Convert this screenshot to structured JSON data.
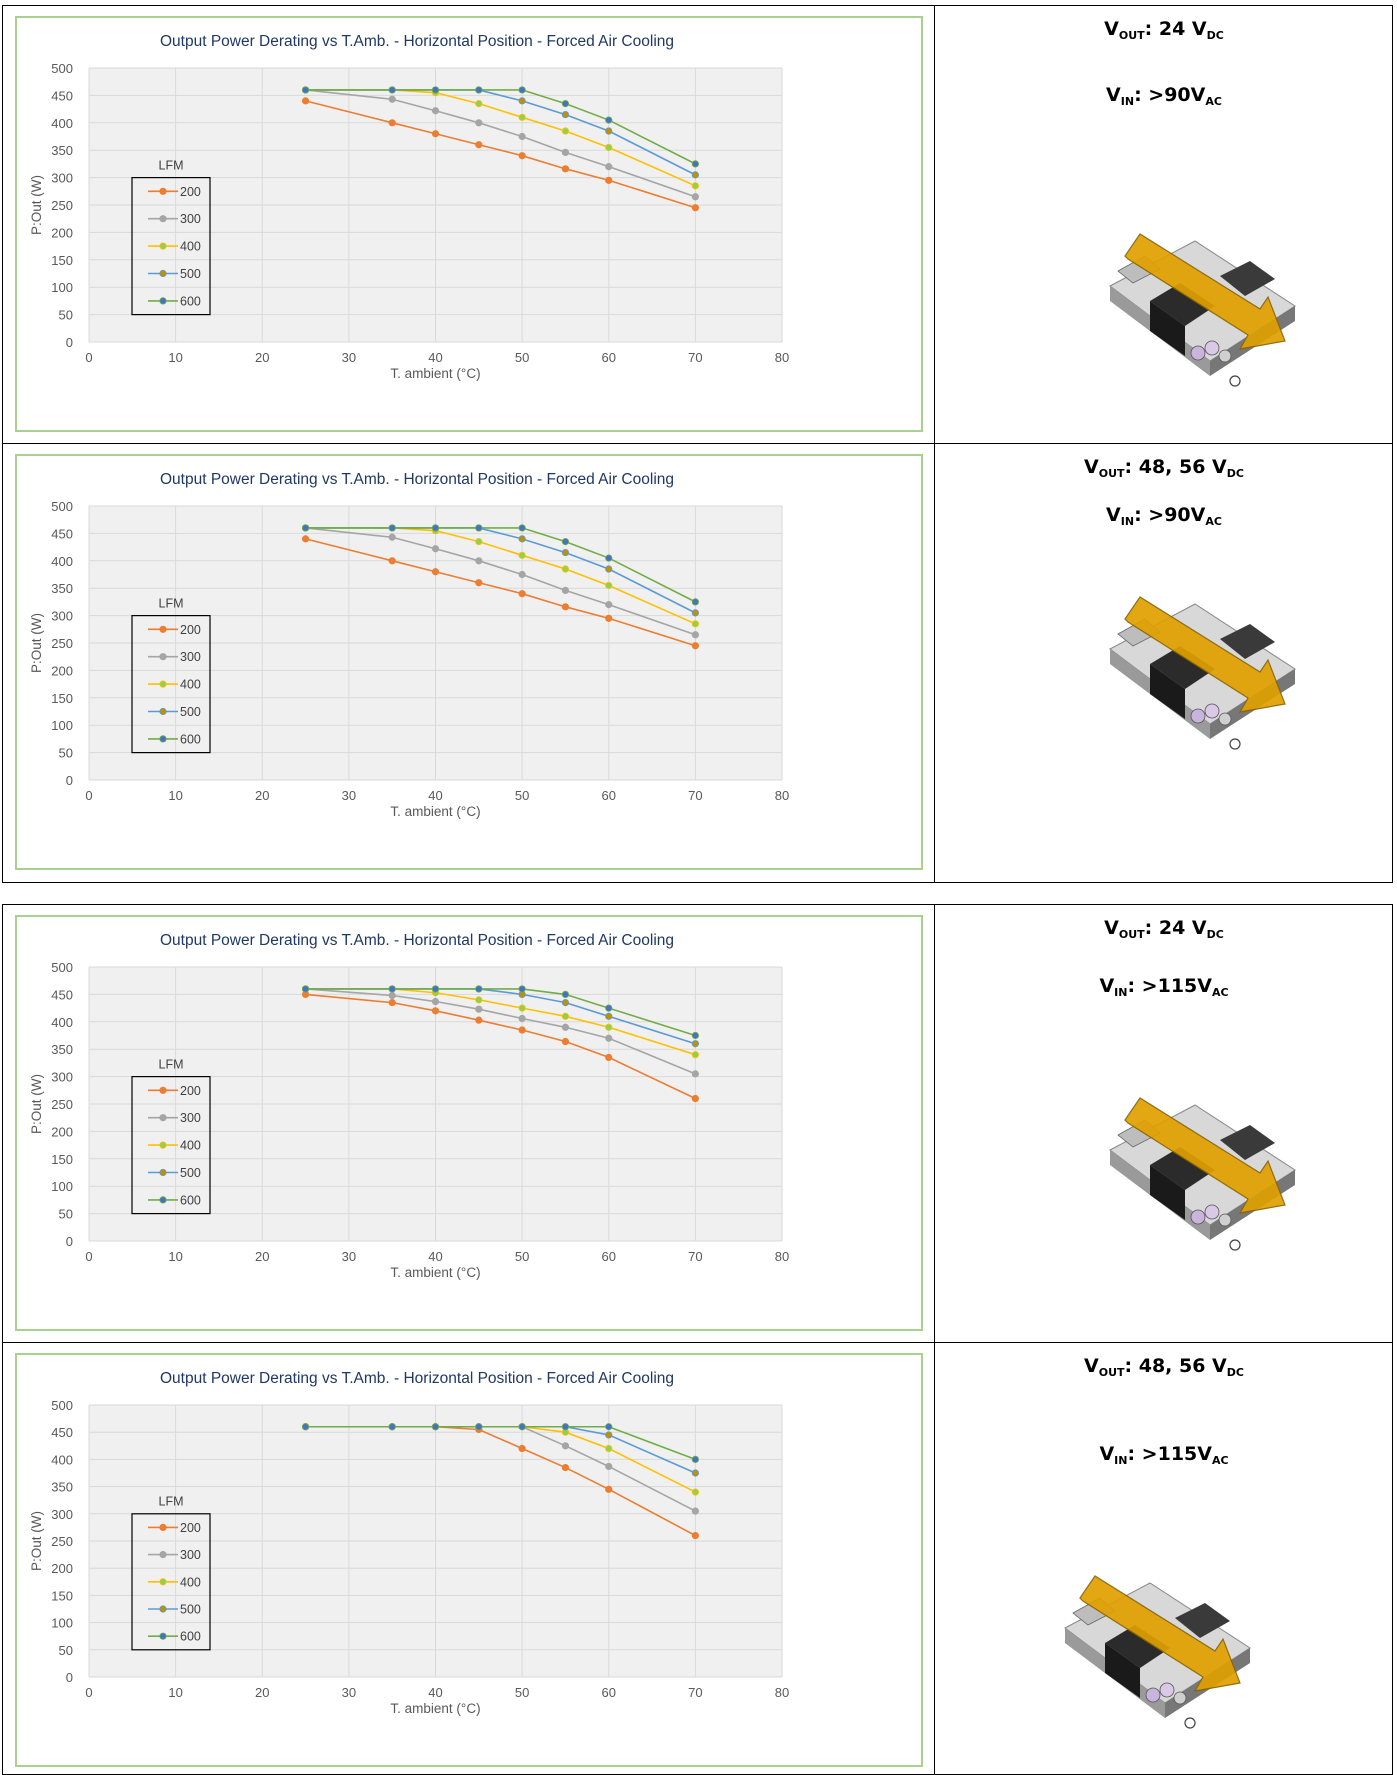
{
  "colors": {
    "frame": "#a9d08e",
    "title": "#1f3864",
    "plot_bg": "#f0f0f0",
    "grid": "#d9d9d9",
    "axis_text": "#595959",
    "s200": "#ed7d31",
    "s300": "#a5a5a5",
    "s400": "#ffc000",
    "s400_marker": "#92d050",
    "s500": "#5b9bd5",
    "s500_marker": "#bf9000",
    "s600": "#70ad47",
    "s600_marker": "#4472c4",
    "arrow": "#e0a000"
  },
  "panels": [
    {
      "spec": {
        "vout_label": "V",
        "vout_sub": "OUT",
        "vout_value": ": 24 V",
        "vout_unit": "DC",
        "vin_label": "V",
        "vin_sub": "IN",
        "vin_value": ": >90V",
        "vin_unit": "AC"
      },
      "image_label": "power-supply-with-airflow-arrow"
    },
    {
      "spec": {
        "vout_label": "V",
        "vout_sub": "OUT",
        "vout_value": ": 48, 56  V",
        "vout_unit": "DC",
        "vin_label": "V",
        "vin_sub": "IN",
        "vin_value": ": >90V",
        "vin_unit": "AC"
      },
      "image_label": "power-supply-with-airflow-arrow"
    },
    {
      "spec": {
        "vout_label": "V",
        "vout_sub": "OUT",
        "vout_value": ": 24 V",
        "vout_unit": "DC",
        "vin_label": "V",
        "vin_sub": "IN",
        "vin_value": ": >115V",
        "vin_unit": "AC"
      },
      "image_label": "power-supply-with-airflow-arrow"
    },
    {
      "spec": {
        "vout_label": "V",
        "vout_sub": "OUT",
        "vout_value": ": 48, 56  V",
        "vout_unit": "DC",
        "vin_label": "V",
        "vin_sub": "IN",
        "vin_value": ": >115V",
        "vin_unit": "AC"
      },
      "image_label": "power-supply-with-airflow-arrow"
    }
  ],
  "chart_data": [
    {
      "type": "line",
      "title": "Output Power Derating vs T.Amb.   -   Horizontal Position  - Forced Air Cooling",
      "xlabel": "T. ambient (°C)",
      "ylabel": "P:Out (W)",
      "xlim": [
        0,
        80
      ],
      "ylim": [
        0,
        500
      ],
      "xticks": [
        0,
        10,
        20,
        30,
        40,
        50,
        60,
        70,
        80
      ],
      "yticks": [
        0,
        50,
        100,
        150,
        200,
        250,
        300,
        350,
        400,
        450,
        500
      ],
      "grid": true,
      "legend_title": "LFM",
      "legend_position": "left",
      "x": [
        25,
        35,
        40,
        45,
        50,
        55,
        60,
        70
      ],
      "series": [
        {
          "name": "200",
          "values": [
            440,
            400,
            380,
            360,
            340,
            316,
            295,
            245
          ]
        },
        {
          "name": "300",
          "values": [
            460,
            443,
            422,
            400,
            375,
            346,
            320,
            265
          ]
        },
        {
          "name": "400",
          "values": [
            460,
            460,
            455,
            435,
            410,
            385,
            355,
            285
          ]
        },
        {
          "name": "500",
          "values": [
            460,
            460,
            460,
            460,
            440,
            415,
            385,
            305
          ]
        },
        {
          "name": "600",
          "values": [
            460,
            460,
            460,
            460,
            460,
            435,
            405,
            325
          ]
        }
      ]
    },
    {
      "type": "line",
      "title": "Output Power Derating vs T.Amb.   -   Horizontal Position  -   Forced Air Cooling",
      "xlabel": "T. ambient (°C)",
      "ylabel": "P:Out (W)",
      "xlim": [
        0,
        80
      ],
      "ylim": [
        0,
        500
      ],
      "xticks": [
        0,
        10,
        20,
        30,
        40,
        50,
        60,
        70,
        80
      ],
      "yticks": [
        0,
        50,
        100,
        150,
        200,
        250,
        300,
        350,
        400,
        450,
        500
      ],
      "grid": true,
      "legend_title": "LFM",
      "legend_position": "left",
      "x": [
        25,
        35,
        40,
        45,
        50,
        55,
        60,
        70
      ],
      "series": [
        {
          "name": "200",
          "values": [
            440,
            400,
            380,
            360,
            340,
            316,
            295,
            245
          ]
        },
        {
          "name": "300",
          "values": [
            460,
            443,
            422,
            400,
            375,
            346,
            320,
            265
          ]
        },
        {
          "name": "400",
          "values": [
            460,
            460,
            455,
            435,
            410,
            385,
            355,
            285
          ]
        },
        {
          "name": "500",
          "values": [
            460,
            460,
            460,
            460,
            440,
            415,
            385,
            305
          ]
        },
        {
          "name": "600",
          "values": [
            460,
            460,
            460,
            460,
            460,
            435,
            405,
            325
          ]
        }
      ]
    },
    {
      "type": "line",
      "title": "Output Power Derating vs T.Amb.   -   Horizontal Position  -   Forced Air Cooling",
      "xlabel": "T. ambient (°C)",
      "ylabel": "P:Out (W)",
      "xlim": [
        0,
        80
      ],
      "ylim": [
        0,
        500
      ],
      "xticks": [
        0,
        10,
        20,
        30,
        40,
        50,
        60,
        70,
        80
      ],
      "yticks": [
        0,
        50,
        100,
        150,
        200,
        250,
        300,
        350,
        400,
        450,
        500
      ],
      "grid": true,
      "legend_title": "LFM",
      "legend_position": "left",
      "x": [
        25,
        35,
        40,
        45,
        50,
        55,
        60,
        70
      ],
      "series": [
        {
          "name": "200",
          "values": [
            450,
            435,
            420,
            403,
            385,
            364,
            335,
            260
          ]
        },
        {
          "name": "300",
          "values": [
            460,
            448,
            437,
            423,
            406,
            390,
            370,
            305
          ]
        },
        {
          "name": "400",
          "values": [
            460,
            460,
            453,
            440,
            425,
            410,
            390,
            340
          ]
        },
        {
          "name": "500",
          "values": [
            460,
            460,
            460,
            460,
            450,
            435,
            410,
            360
          ]
        },
        {
          "name": "600",
          "values": [
            460,
            460,
            460,
            460,
            460,
            450,
            425,
            375
          ]
        }
      ]
    },
    {
      "type": "line",
      "title": "Output Power Derating vs T.Amb.   -   Horizontal Position  -   Forced Air Cooling",
      "xlabel": "T. ambient (°C)",
      "ylabel": "P:Out (W)",
      "xlim": [
        0,
        80
      ],
      "ylim": [
        0,
        500
      ],
      "xticks": [
        0,
        10,
        20,
        30,
        40,
        50,
        60,
        70,
        80
      ],
      "yticks": [
        0,
        50,
        100,
        150,
        200,
        250,
        300,
        350,
        400,
        450,
        500
      ],
      "grid": true,
      "legend_title": "LFM",
      "legend_position": "left",
      "x": [
        25,
        35,
        40,
        45,
        50,
        55,
        60,
        70
      ],
      "series": [
        {
          "name": "200",
          "values": [
            460,
            460,
            460,
            455,
            420,
            385,
            345,
            260
          ]
        },
        {
          "name": "300",
          "values": [
            460,
            460,
            460,
            460,
            460,
            425,
            387,
            305
          ]
        },
        {
          "name": "400",
          "values": [
            460,
            460,
            460,
            460,
            460,
            450,
            420,
            340
          ]
        },
        {
          "name": "500",
          "values": [
            460,
            460,
            460,
            460,
            460,
            460,
            445,
            375
          ]
        },
        {
          "name": "600",
          "values": [
            460,
            460,
            460,
            460,
            460,
            460,
            460,
            400
          ]
        }
      ]
    }
  ]
}
